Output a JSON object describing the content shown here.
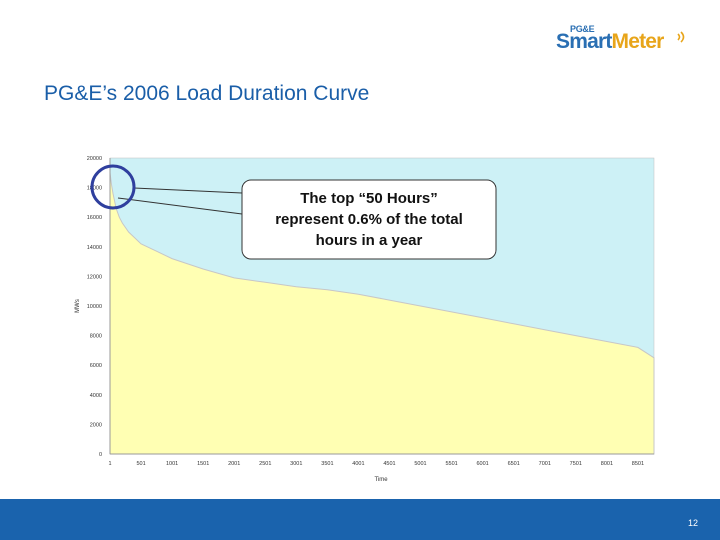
{
  "logo": {
    "small": "PG&E",
    "part1": "Smart",
    "part2": "Meter"
  },
  "title": "PG&E’s 2006 Load Duration Curve",
  "callout_lines": [
    "The top “50 Hours”",
    "represent 0.6% of the total",
    "hours in a year"
  ],
  "page_number": "12",
  "colors": {
    "title": "#1a5ea8",
    "plot_bg": "#cdf1f6",
    "area_fill": "#ffffb3",
    "area_edge": "#c7c7c7",
    "highlight_circle": "#2f3f9e",
    "footer": "#1a63ad"
  },
  "chart_data": {
    "type": "area",
    "xlabel": "Time",
    "ylabel": "MWs",
    "xlim": [
      1,
      8760
    ],
    "ylim": [
      0,
      20000
    ],
    "y_ticks": [
      "0",
      "2000",
      "4000",
      "6000",
      "8000",
      "10000",
      "12000",
      "14000",
      "16000",
      "18000",
      "20000"
    ],
    "y_tick_values": [
      0,
      2000,
      4000,
      6000,
      8000,
      10000,
      12000,
      14000,
      16000,
      18000,
      20000
    ],
    "x_ticks": [
      "1",
      "501",
      "1001",
      "1501",
      "2001",
      "2501",
      "3001",
      "3501",
      "4001",
      "4501",
      "5001",
      "5501",
      "6001",
      "6501",
      "7001",
      "7501",
      "8001",
      "8501"
    ],
    "x": [
      1,
      25,
      50,
      100,
      150,
      200,
      300,
      400,
      500,
      750,
      1000,
      1500,
      2000,
      2500,
      3000,
      3500,
      4000,
      4500,
      5000,
      5500,
      6000,
      6500,
      7000,
      7500,
      8000,
      8500,
      8760
    ],
    "y": [
      19000,
      18200,
      17600,
      16600,
      16000,
      15600,
      15000,
      14600,
      14200,
      13700,
      13200,
      12500,
      11900,
      11600,
      11300,
      11100,
      10800,
      10400,
      10000,
      9600,
      9200,
      8800,
      8400,
      8000,
      7600,
      7200,
      6500
    ],
    "grid": false,
    "legend": "none"
  }
}
